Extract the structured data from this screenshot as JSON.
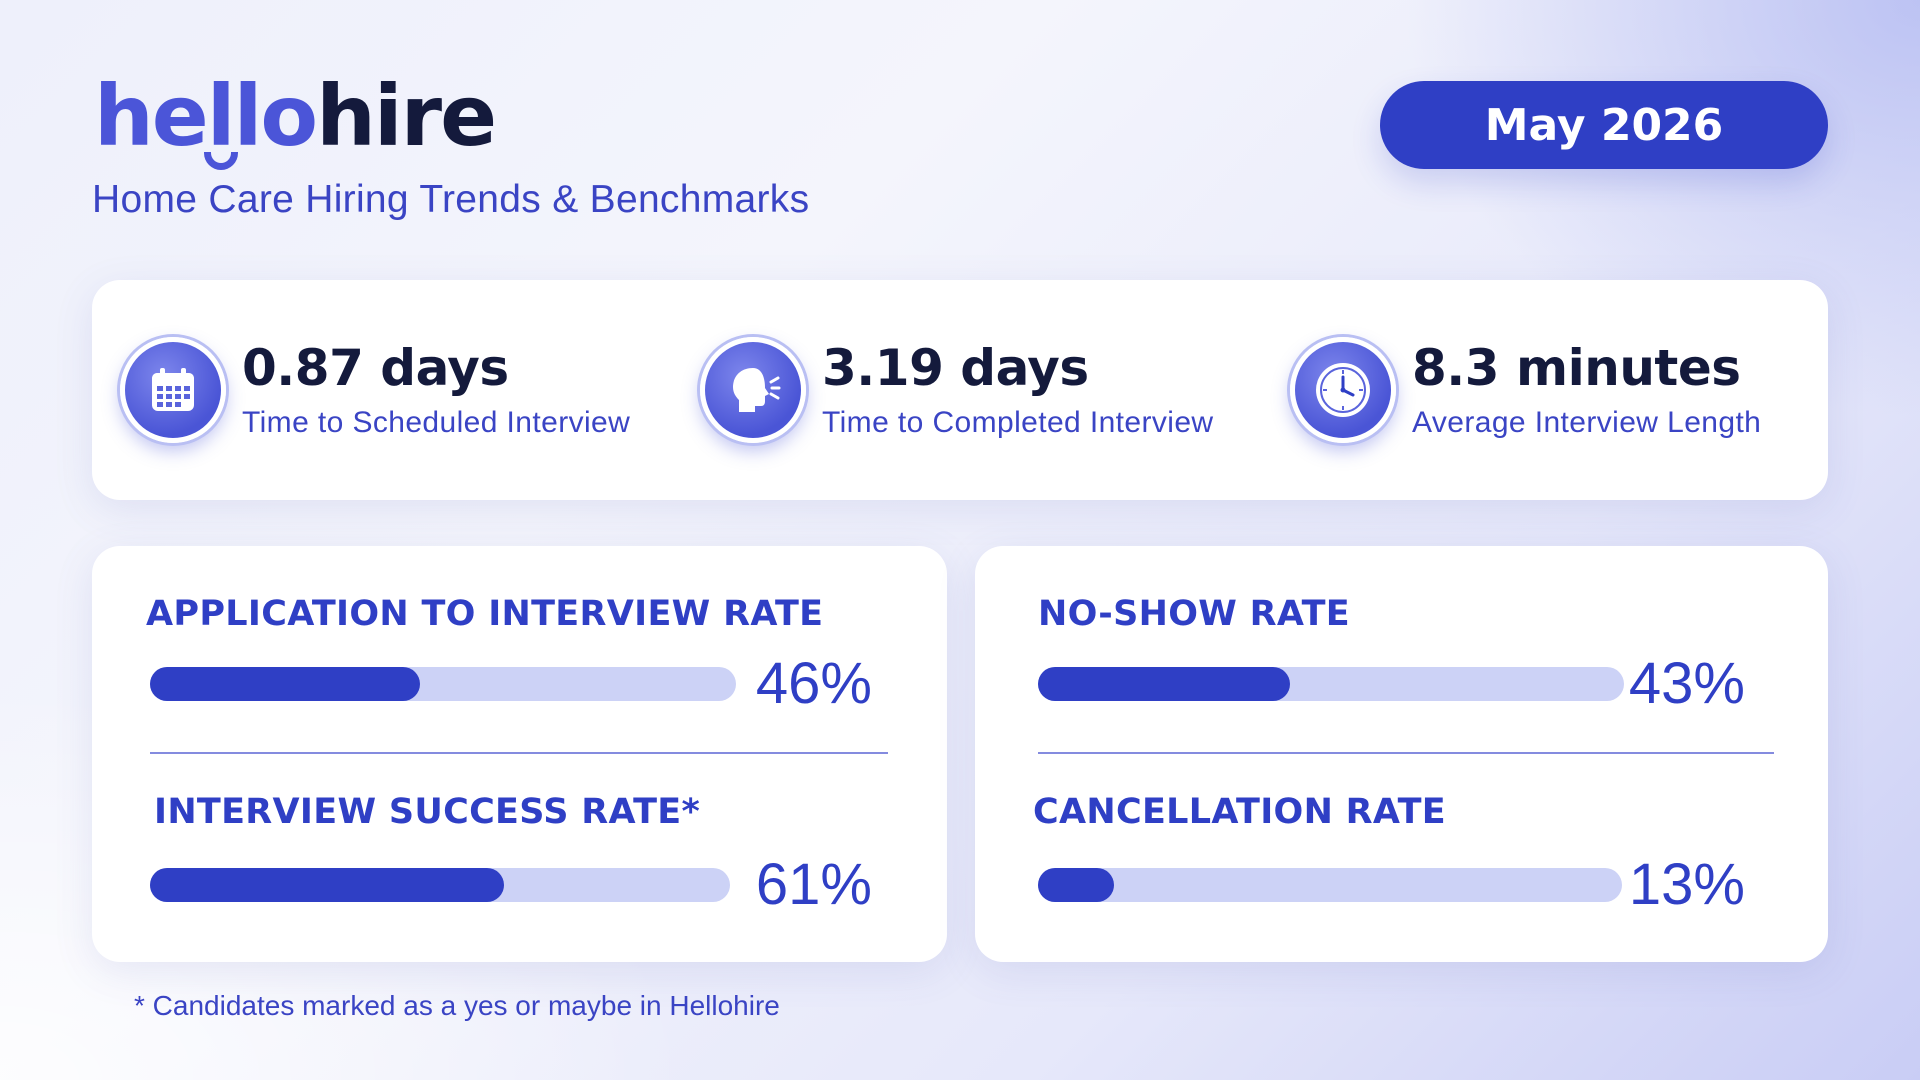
{
  "brand": {
    "logo_part1": "hello",
    "logo_part2": "hire",
    "subtitle": "Home Care Hiring Trends & Benchmarks"
  },
  "date_badge": "May 2026",
  "stats": [
    {
      "value": "0.87 days",
      "label": "Time to Scheduled Interview",
      "icon": "calendar-icon"
    },
    {
      "value": "3.19 days",
      "label": "Time to Completed Interview",
      "icon": "speaking-head-icon"
    },
    {
      "value": "8.3 minutes",
      "label": "Average Interview Length",
      "icon": "clock-icon"
    }
  ],
  "rates": {
    "left": [
      {
        "title": "APPLICATION TO INTERVIEW RATE",
        "value_label": "46%",
        "fraction": 0.46
      },
      {
        "title": "INTERVIEW SUCCESS RATE*",
        "value_label": "61%",
        "fraction": 0.61
      }
    ],
    "right": [
      {
        "title": "NO-SHOW RATE",
        "value_label": "43%",
        "fraction": 0.43
      },
      {
        "title": "CANCELLATION RATE",
        "value_label": "13%",
        "fraction": 0.13
      }
    ]
  },
  "footnote": "* Candidates marked as a yes or maybe in Hellohire",
  "colors": {
    "accent": "#2f3fc5",
    "track": "#ccd2f6",
    "brand_blue": "#4b55d8",
    "dark_text": "#141a3c"
  }
}
